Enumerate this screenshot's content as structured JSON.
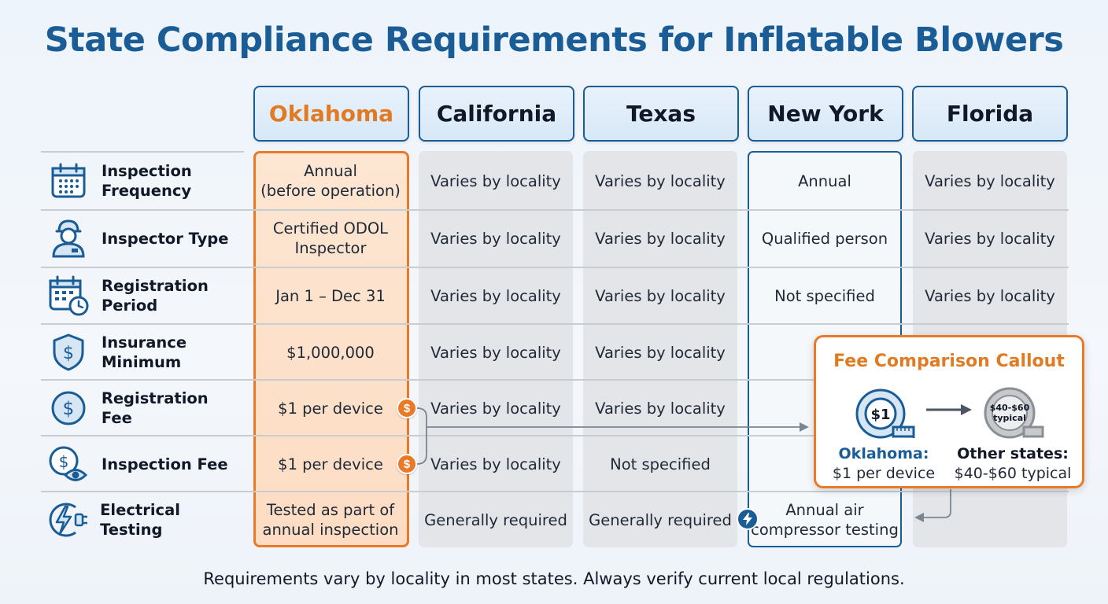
{
  "title": "State Compliance Requirements for Inflatable Blowers",
  "states": [
    "Oklahoma",
    "California",
    "Texas",
    "New York",
    "Florida"
  ],
  "rows": [
    {
      "label": "Inspection\nFrequency",
      "icon": "calendar-icon",
      "cells": [
        "Annual\n(before operation)",
        "Varies by locality",
        "Varies by locality",
        "Annual",
        "Varies by locality"
      ]
    },
    {
      "label": "Inspector Type",
      "icon": "inspector-icon",
      "cells": [
        "Certified ODOL\nInspector",
        "Varies by locality",
        "Varies by locality",
        "Qualified person",
        "Varies by locality"
      ]
    },
    {
      "label": "Registration\nPeriod",
      "icon": "calendar-clock-icon",
      "cells": [
        "Jan 1 – Dec 31",
        "Varies by locality",
        "Varies by locality",
        "Not specified",
        "Varies by locality"
      ]
    },
    {
      "label": "Insurance\nMinimum",
      "icon": "shield-dollar-icon",
      "cells": [
        "$1,000,000",
        "Varies by locality",
        "Varies by locality",
        "",
        ""
      ]
    },
    {
      "label": "Registration Fee",
      "icon": "dollar-circle-icon",
      "cells": [
        "$1 per device",
        "Varies by locality",
        "Varies by locality",
        "",
        ""
      ]
    },
    {
      "label": "Inspection Fee",
      "icon": "dollar-eye-icon",
      "cells": [
        "$1 per device",
        "Varies by locality",
        "Not specified",
        "",
        ""
      ]
    },
    {
      "label": "Electrical Testing",
      "icon": "electrical-plug-icon",
      "cells": [
        "Tested as part of\nannual inspection",
        "Generally required",
        "Generally required",
        "Annual air\ncompressor testing",
        ""
      ]
    }
  ],
  "fee_coin_symbol": "$",
  "callout": {
    "title": "Fee Comparison Callout",
    "ok_badge": "$1",
    "other_badge": "$40-$60\ntypical",
    "ok_label_bold": "Oklahoma:",
    "ok_label": "$1 per device",
    "other_label_bold": "Other states:",
    "other_label": "$40-$60 typical"
  },
  "footnote": "Requirements vary by locality in most states. Always verify current local regulations.",
  "colors": {
    "title": "#1a5c96",
    "oklahoma_accent": "#ea7a28",
    "oklahoma_fill": "#fde6d2",
    "state_fill": "#e3e5e8",
    "header_border": "#1a5c96"
  }
}
